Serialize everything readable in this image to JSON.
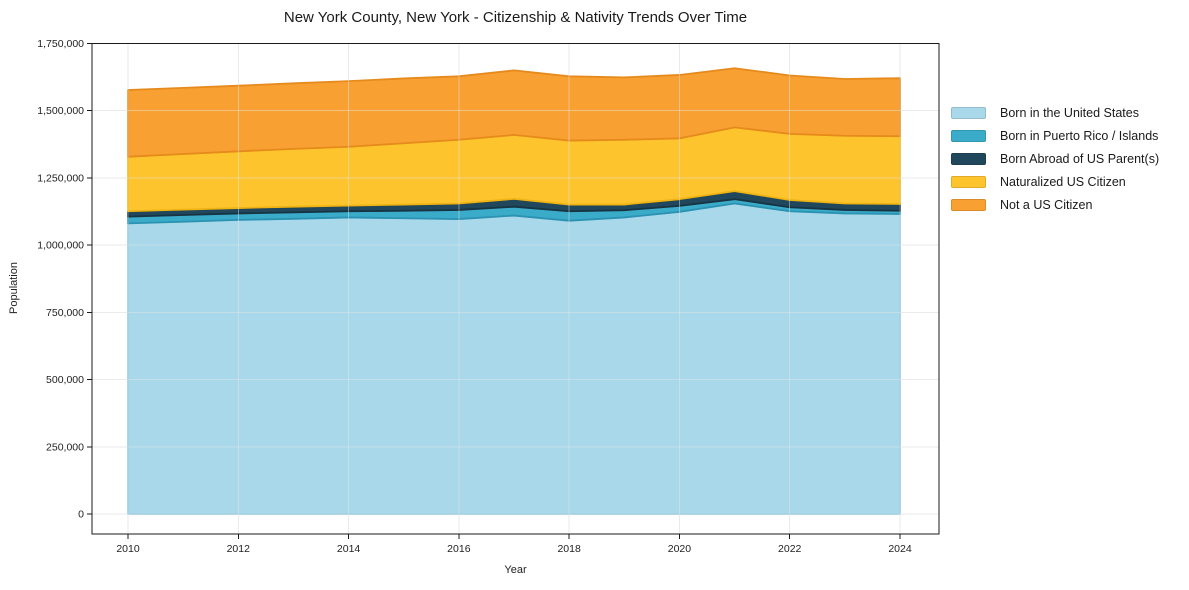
{
  "figure": {
    "title": "New York County, New York - Citizenship & Nativity Trends Over Time",
    "xlabel": "Year",
    "ylabel": "Population"
  },
  "legend": {
    "position": "right",
    "items": [
      {
        "label": "Born in the United States",
        "color": "#a8d8ea"
      },
      {
        "label": "Born in Puerto Rico / Islands",
        "color": "#3aabc9"
      },
      {
        "label": "Born Abroad of US Parent(s)",
        "color": "#21475c"
      },
      {
        "label": "Naturalized US Citizen",
        "color": "#fdc42e"
      },
      {
        "label": "Not a US Citizen",
        "color": "#f9a033"
      }
    ]
  },
  "chart_data": {
    "type": "area",
    "stacked": true,
    "title": "New York County, New York - Citizenship & Nativity Trends Over Time",
    "xlabel": "Year",
    "ylabel": "Population",
    "grid": true,
    "legend_position": "right outside",
    "xlim": [
      2009.35,
      2024.7
    ],
    "ylim": [
      0,
      1750000
    ],
    "x": [
      2010,
      2011,
      2012,
      2013,
      2014,
      2015,
      2016,
      2017,
      2018,
      2019,
      2020,
      2021,
      2022,
      2023,
      2024
    ],
    "series": [
      {
        "name": "Born in the United States",
        "color": "#a8d8ea",
        "edge": "#8fc8e0",
        "values": [
          1081000,
          1087000,
          1094000,
          1098000,
          1103000,
          1100000,
          1097000,
          1110000,
          1091000,
          1103000,
          1124000,
          1155000,
          1126000,
          1118000,
          1116000
        ]
      },
      {
        "name": "Born in Puerto Rico / Islands",
        "color": "#3aabc9",
        "edge": "#2b93b1",
        "values": [
          25000,
          25000,
          24000,
          24000,
          23000,
          28000,
          34000,
          33000,
          35000,
          27000,
          22000,
          16000,
          15000,
          13000,
          12000
        ]
      },
      {
        "name": "Born Abroad of US Parent(s)",
        "color": "#21475c",
        "edge": "#173443",
        "values": [
          20000,
          20000,
          20000,
          21000,
          21000,
          23000,
          24000,
          29000,
          25000,
          21000,
          25000,
          30000,
          27000,
          24000,
          25000
        ]
      },
      {
        "name": "Naturalized US Citizen",
        "color": "#fdc42e",
        "edge": "#efb312",
        "values": [
          203000,
          207000,
          211000,
          215000,
          219000,
          228000,
          237000,
          238000,
          238000,
          241000,
          226000,
          237000,
          246000,
          252000,
          252000
        ]
      },
      {
        "name": "Not a US Citizen",
        "color": "#f9a033",
        "edge": "#e68a1c",
        "values": [
          248000,
          246000,
          244000,
          244000,
          244000,
          241000,
          236000,
          240000,
          239000,
          232000,
          236000,
          220000,
          217000,
          211000,
          216000
        ]
      }
    ],
    "y_ticks": [
      {
        "value": 0,
        "label": "0"
      },
      {
        "value": 250000,
        "label": "250,000"
      },
      {
        "value": 500000,
        "label": "500,000"
      },
      {
        "value": 750000,
        "label": "750,000"
      },
      {
        "value": 1000000,
        "label": "1,000,000"
      },
      {
        "value": 1250000,
        "label": "1,250,000"
      },
      {
        "value": 1500000,
        "label": "1,500,000"
      },
      {
        "value": 1750000,
        "label": "1,750,000"
      }
    ],
    "x_ticks": [
      {
        "value": 2010,
        "label": "2010"
      },
      {
        "value": 2012,
        "label": "2012"
      },
      {
        "value": 2014,
        "label": "2014"
      },
      {
        "value": 2016,
        "label": "2016"
      },
      {
        "value": 2018,
        "label": "2018"
      },
      {
        "value": 2020,
        "label": "2020"
      },
      {
        "value": 2022,
        "label": "2022"
      },
      {
        "value": 2024,
        "label": "2024"
      }
    ]
  }
}
